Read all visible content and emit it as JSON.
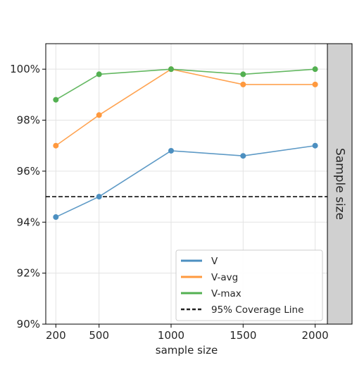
{
  "chart_data": {
    "type": "line",
    "xlabel": "sample size",
    "ylabel": "",
    "facet_label": "Sample size",
    "x": [
      200,
      500,
      1000,
      1500,
      2000
    ],
    "xticks": [
      200,
      500,
      1000,
      1500,
      2000
    ],
    "xlim": [
      130,
      2085
    ],
    "ylim": [
      90,
      101
    ],
    "yticks": [
      90,
      92,
      94,
      96,
      98,
      100
    ],
    "ytick_suffix": "%",
    "grid": true,
    "legend_position": "lower-right",
    "series": [
      {
        "name": "V",
        "color": "#4c8fc0",
        "values": [
          94.2,
          95.0,
          96.8,
          96.6,
          97.0
        ]
      },
      {
        "name": "V-avg",
        "color": "#ff993e",
        "values": [
          97.0,
          98.2,
          100.0,
          99.4,
          99.4
        ]
      },
      {
        "name": "V-max",
        "color": "#53b051",
        "values": [
          98.8,
          99.8,
          100.0,
          99.8,
          100.0
        ]
      }
    ],
    "reference_line": {
      "name": "95% Coverage Line",
      "y": 95,
      "color": "#222222",
      "style": "dashed"
    }
  }
}
